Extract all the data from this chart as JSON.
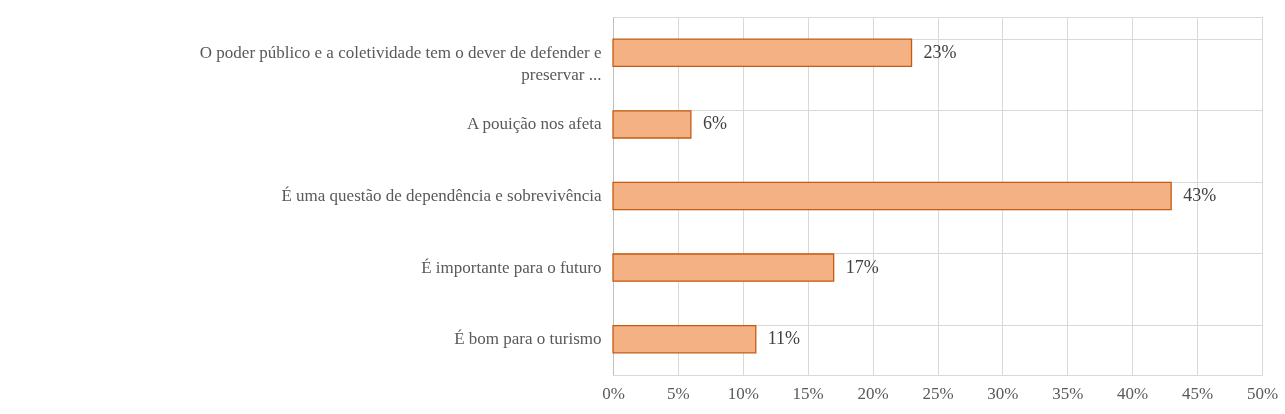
{
  "chart_data": {
    "type": "bar",
    "orientation": "horizontal",
    "categories": [
      "O poder público e a coletividade tem o dever de defender e preservar ...",
      "A pouição nos afeta",
      "É uma questão de dependência e sobrevivência",
      "É importante para o futuro",
      "É bom para o turismo"
    ],
    "values": [
      23,
      6,
      43,
      17,
      11
    ],
    "value_labels": [
      "23%",
      "6%",
      "43%",
      "17%",
      "11%"
    ],
    "color": "#f4b183",
    "xlim": [
      0,
      50
    ],
    "xticks": [
      {
        "value": 0,
        "label": "0%"
      },
      {
        "value": 5,
        "label": "5%"
      },
      {
        "value": 10,
        "label": "10%"
      },
      {
        "value": 15,
        "label": "15%"
      },
      {
        "value": 20,
        "label": "20%"
      },
      {
        "value": 25,
        "label": "25%"
      },
      {
        "value": 30,
        "label": "30%"
      },
      {
        "value": 35,
        "label": "35%"
      },
      {
        "value": 40,
        "label": "40%"
      },
      {
        "value": 45,
        "label": "45%"
      },
      {
        "value": 50,
        "label": "50%"
      }
    ],
    "grid": true
  }
}
